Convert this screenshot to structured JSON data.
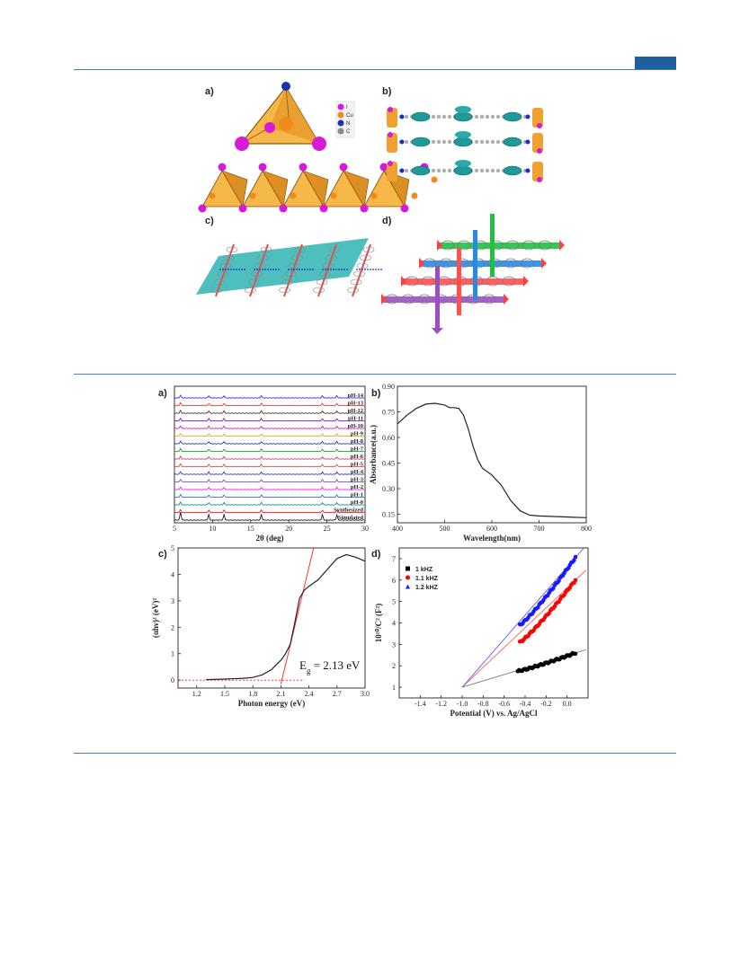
{
  "figure1": {
    "panel_labels": [
      "a)",
      "b)",
      "c)",
      "d)"
    ],
    "legend": [
      {
        "label": "I",
        "color": "#d61bd6"
      },
      {
        "label": "Cu",
        "color": "#f08a1c"
      },
      {
        "label": "N",
        "color": "#1c2fb8"
      },
      {
        "label": "C",
        "color": "#8a8a8a"
      }
    ]
  },
  "figure2": {
    "panel_labels": [
      "a)",
      "b)",
      "c)",
      "d)"
    ],
    "annotation_eg": "E",
    "annotation_eg_sub": "g",
    "annotation_eg_value": " = 2.13 eV"
  },
  "chart_data": [
    {
      "type": "line",
      "panel": "a",
      "xlabel": "2θ (deg)",
      "xlim": [
        5,
        30
      ],
      "x_ticks": [
        "5",
        "10",
        "15",
        "20",
        "25",
        "30"
      ],
      "series": [
        {
          "name": "pH-14",
          "color": "#1a1aff"
        },
        {
          "name": "pH-13",
          "color": "#ff2020"
        },
        {
          "name": "pH-12",
          "color": "#222222"
        },
        {
          "name": "pH-11",
          "color": "#6a00c8"
        },
        {
          "name": "pH-10",
          "color": "#d000d0"
        },
        {
          "name": "pH-9",
          "color": "#ff9a00"
        },
        {
          "name": "pH-8",
          "color": "#0a2a8a"
        },
        {
          "name": "pH-7",
          "color": "#00a000"
        },
        {
          "name": "pH-6",
          "color": "#c03060"
        },
        {
          "name": "pH-5",
          "color": "#ff3030"
        },
        {
          "name": "pH-4",
          "color": "#2020c0"
        },
        {
          "name": "pH-3",
          "color": "#7a3cb0"
        },
        {
          "name": "pH-2",
          "color": "#ff00ff"
        },
        {
          "name": "pH-1",
          "color": "#1a5fc0"
        },
        {
          "name": "pH-0",
          "color": "#008080"
        },
        {
          "name": "Synthesized",
          "color": "#ff0000"
        },
        {
          "name": "Simulated",
          "color": "#000000"
        }
      ],
      "peaks_2theta": [
        5.8,
        9.5,
        11.5,
        16.4,
        24.4,
        26.3
      ]
    },
    {
      "type": "line",
      "panel": "b",
      "xlabel": "Wavelength(nm)",
      "ylabel": "Absorbance(a.u.)",
      "xlim": [
        400,
        800
      ],
      "ylim": [
        0.1,
        0.9
      ],
      "x_ticks": [
        "400",
        "500",
        "600",
        "700",
        "800"
      ],
      "y_ticks": [
        "0.15",
        "0.30",
        "0.45",
        "0.60",
        "0.75",
        "0.90"
      ],
      "x": [
        400,
        420,
        440,
        460,
        480,
        500,
        510,
        520,
        530,
        540,
        550,
        560,
        570,
        580,
        600,
        620,
        640,
        660,
        680,
        700,
        750,
        800
      ],
      "y": [
        0.68,
        0.73,
        0.77,
        0.795,
        0.8,
        0.79,
        0.775,
        0.775,
        0.77,
        0.73,
        0.65,
        0.55,
        0.47,
        0.42,
        0.38,
        0.32,
        0.23,
        0.17,
        0.145,
        0.14,
        0.135,
        0.13
      ]
    },
    {
      "type": "line",
      "panel": "c",
      "xlabel": "Photon energy (eV)",
      "ylabel": "(αhν)² (eV)²",
      "xlim": [
        1.0,
        3.0
      ],
      "ylim": [
        -0.3,
        5
      ],
      "x_ticks": [
        "1.2",
        "1.5",
        "1.8",
        "2.1",
        "2.4",
        "2.7",
        "3.0"
      ],
      "y_ticks": [
        "0",
        "1",
        "2",
        "3",
        "4",
        "5"
      ],
      "x": [
        1.3,
        1.5,
        1.7,
        1.8,
        1.9,
        2.0,
        2.05,
        2.1,
        2.15,
        2.2,
        2.25,
        2.3,
        2.35,
        2.4,
        2.5,
        2.6,
        2.7,
        2.8,
        2.9,
        3.0
      ],
      "y": [
        0.02,
        0.04,
        0.07,
        0.1,
        0.2,
        0.4,
        0.58,
        0.75,
        1.0,
        1.35,
        2.2,
        3.1,
        3.4,
        3.55,
        3.8,
        4.2,
        4.6,
        4.75,
        4.65,
        4.5
      ],
      "fit_line": {
        "x": [
          2.12,
          2.45
        ],
        "y": [
          0,
          5.0
        ]
      },
      "baseline": {
        "x": [
          1.0,
          2.35
        ],
        "y": [
          0,
          0
        ]
      },
      "eg": 2.13
    },
    {
      "type": "scatter",
      "panel": "d",
      "xlabel": "Potential (V) vs. Ag/AgCl",
      "ylabel": "10¹⁰/C² (F²)",
      "xlim": [
        -1.6,
        0.2
      ],
      "ylim": [
        0.5,
        7.5
      ],
      "x_ticks": [
        "-1.4",
        "-1.2",
        "-1.0",
        "-0.8",
        "-0.6",
        "-0.4",
        "-0.2",
        "0.0"
      ],
      "y_ticks": [
        "1",
        "2",
        "3",
        "4",
        "5",
        "6",
        "7"
      ],
      "series": [
        {
          "name": "1 kHZ",
          "color": "#000000",
          "x_range": [
            -0.47,
            0.08
          ],
          "y_range": [
            1.75,
            2.6
          ],
          "fit_color": "#7a7a7a"
        },
        {
          "name": "1.1 kHZ",
          "color": "#ff0000",
          "x_range": [
            -0.45,
            0.08
          ],
          "y_range": [
            3.1,
            6.0
          ],
          "fit_color": "#ff6060"
        },
        {
          "name": "1.2 kHZ",
          "color": "#1a1aff",
          "x_range": [
            -0.45,
            0.08
          ],
          "y_range": [
            3.9,
            7.05
          ],
          "fit_color": "#5a5aff"
        }
      ],
      "intercept": -1.0
    }
  ]
}
